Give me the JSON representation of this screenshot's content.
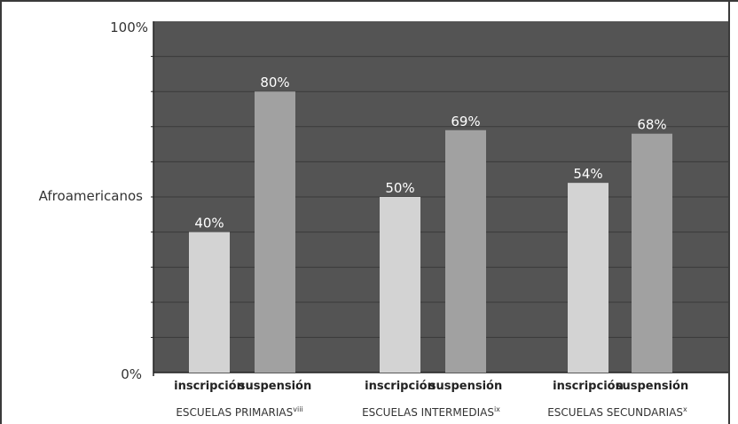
{
  "chart_data": {
    "type": "bar",
    "ylabel": "Afroamericanos",
    "yticks": [
      "0%",
      "100%"
    ],
    "ylim": [
      0,
      100
    ],
    "grid": true,
    "colors": {
      "plot_background": "#545454",
      "grid": "#3a3a3a",
      "inscripcion": "#d3d3d3",
      "suspension": "#a1a1a1",
      "label_on_bar": "#ffffff",
      "axis_text": "#333333"
    },
    "groups": [
      {
        "name": "ESCUELAS PRIMARIAS",
        "superscript": "viii",
        "bars": [
          {
            "label": "inscripción",
            "value": 40,
            "value_label": "40%",
            "series": "inscripcion"
          },
          {
            "label": "suspensión",
            "value": 80,
            "value_label": "80%",
            "series": "suspension"
          }
        ]
      },
      {
        "name": "ESCUELAS INTERMEDIAS",
        "superscript": "ix",
        "bars": [
          {
            "label": "inscripción",
            "value": 50,
            "value_label": "50%",
            "series": "inscripcion"
          },
          {
            "label": "suspensión",
            "value": 69,
            "value_label": "69%",
            "series": "suspension"
          }
        ]
      },
      {
        "name": "ESCUELAS SECUNDARIAS",
        "superscript": "x",
        "bars": [
          {
            "label": "inscripción",
            "value": 54,
            "value_label": "54%",
            "series": "inscripcion"
          },
          {
            "label": "suspensión",
            "value": 68,
            "value_label": "68%",
            "series": "suspension"
          }
        ]
      }
    ]
  }
}
